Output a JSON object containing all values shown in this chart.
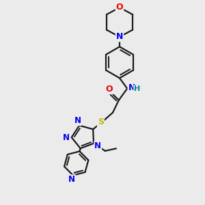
{
  "bg_color": "#ebebeb",
  "bond_color": "#1a1a1a",
  "bond_width": 1.6,
  "atom_colors": {
    "N": "#0000ee",
    "O": "#ee0000",
    "S": "#bbbb00",
    "H": "#008888",
    "C": "#1a1a1a"
  },
  "figsize": [
    3.0,
    3.0
  ],
  "dpi": 100
}
